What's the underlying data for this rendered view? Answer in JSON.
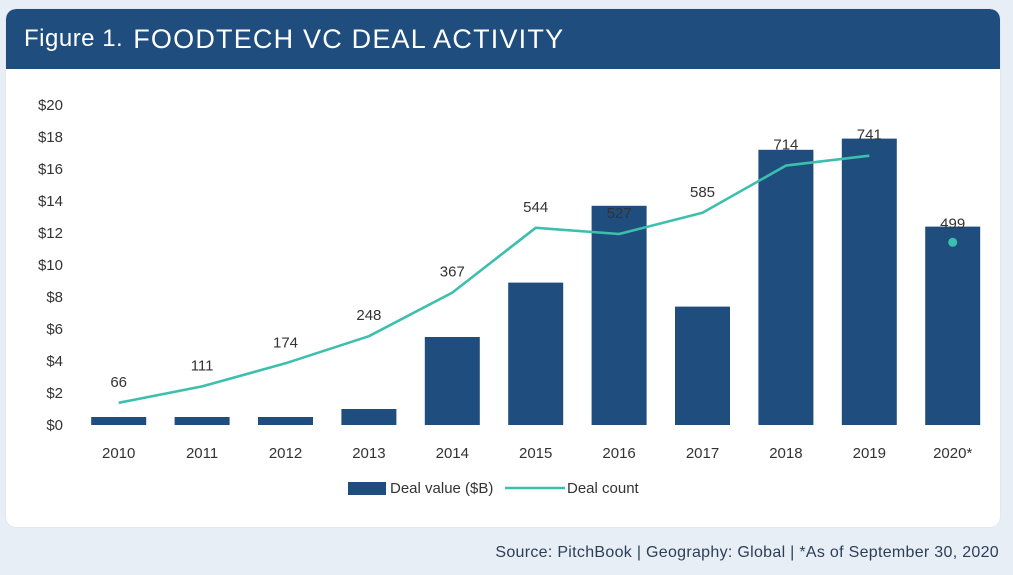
{
  "header": {
    "figure_label": "Figure 1.",
    "title": "FOODTECH VC DEAL ACTIVITY"
  },
  "source_note": "Source: PitchBook  |  Geography: Global  |  *As of September 30, 2020",
  "colors": {
    "header_bg": "#1f4e7e",
    "bar": "#1f4e7e",
    "line": "#3dbfad",
    "text": "#333333"
  },
  "chart_data": {
    "type": "bar",
    "categories": [
      "2010",
      "2011",
      "2012",
      "2013",
      "2014",
      "2015",
      "2016",
      "2017",
      "2018",
      "2019",
      "2020*"
    ],
    "series": [
      {
        "name": "Deal value ($B)",
        "type": "bar",
        "axis": "left",
        "values": [
          0.5,
          0.5,
          0.5,
          1.0,
          5.5,
          8.9,
          13.7,
          7.4,
          17.2,
          17.9,
          12.4
        ]
      },
      {
        "name": "Deal count",
        "type": "line",
        "axis": "hidden-right",
        "values": [
          66,
          111,
          174,
          248,
          367,
          544,
          527,
          585,
          714,
          741,
          499
        ],
        "labels": [
          "66",
          "111",
          "174",
          "248",
          "367",
          "544",
          "527",
          "585",
          "714",
          "741",
          "499"
        ],
        "last_point_separate": true
      }
    ],
    "y_ticks": [
      "$0",
      "$2",
      "$4",
      "$6",
      "$8",
      "$10",
      "$12",
      "$14",
      "$16",
      "$18",
      "$20"
    ],
    "ylim": [
      0,
      20
    ],
    "grid": false,
    "legend": "bottom-center"
  }
}
